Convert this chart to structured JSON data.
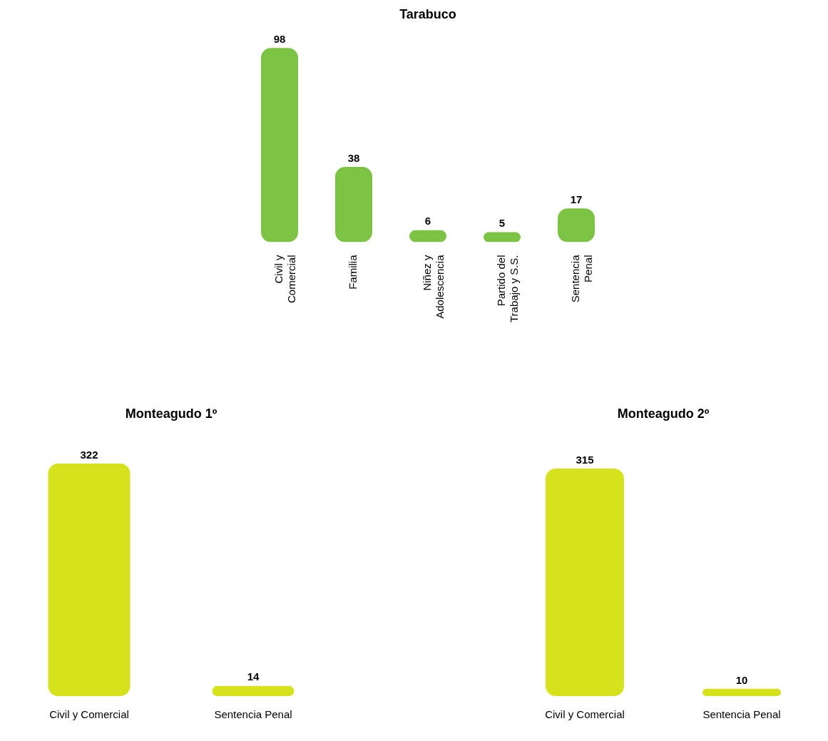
{
  "chart_data": [
    {
      "type": "bar",
      "title": "Tarabuco",
      "categories": [
        "Civil y Comercial",
        "Familia",
        "Niñez y Adolescencia",
        "Partido del Trabajo y S.S.",
        "Sentencia Penal"
      ],
      "values": [
        98,
        38,
        6,
        5,
        17
      ],
      "color": "#7cc243",
      "data_labels": true,
      "grid": false,
      "legend": false
    },
    {
      "type": "bar",
      "title": "Monteagudo 1º",
      "categories": [
        "Civil y Comercial",
        "Sentencia Penal"
      ],
      "values": [
        322,
        14
      ],
      "color": "#d6e21c",
      "data_labels": true,
      "grid": false,
      "legend": false
    },
    {
      "type": "bar",
      "title": "Monteagudo 2º",
      "categories": [
        "Civil y Comercial",
        "Sentencia Penal"
      ],
      "values": [
        315,
        10
      ],
      "color": "#d6e21c",
      "data_labels": true,
      "grid": false,
      "legend": false
    }
  ]
}
